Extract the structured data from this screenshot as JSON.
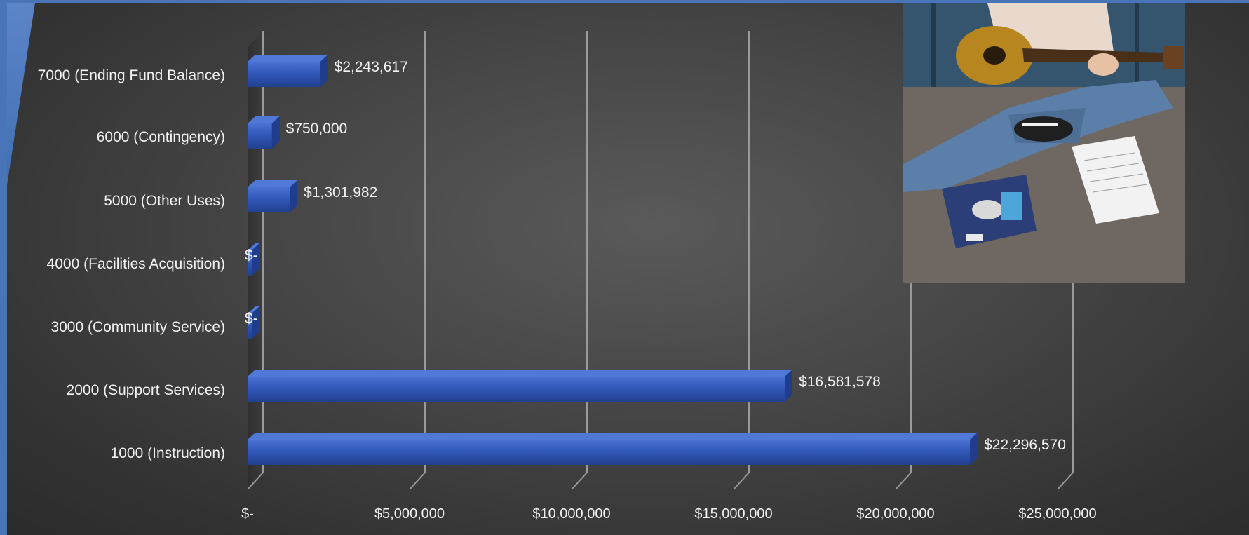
{
  "chart_data": {
    "type": "bar",
    "orientation": "horizontal",
    "style": "3d",
    "categories": [
      "1000 (Instruction)",
      "2000 (Support Services)",
      "3000 (Community Service)",
      "4000 (Facilities Acquisition)",
      "5000 (Other Uses)",
      "6000 (Contingency)",
      "7000 (Ending Fund Balance)"
    ],
    "values": [
      22296570,
      16581578,
      0,
      0,
      1301982,
      750000,
      2243617
    ],
    "data_labels": [
      "$22,296,570",
      "$16,581,578",
      "$-",
      "$-",
      "$1,301,982",
      "$750,000",
      "$2,243,617"
    ],
    "x_ticks": [
      0,
      5000000,
      10000000,
      15000000,
      20000000,
      25000000
    ],
    "x_tick_labels": [
      "$-",
      "$5,000,000",
      "$10,000,000",
      "$15,000,000",
      "$20,000,000",
      "$25,000,000"
    ],
    "xlim": [
      0,
      25000000
    ],
    "grid": true,
    "bar_color": "#2f55b5",
    "title": "",
    "xlabel": "",
    "ylabel": ""
  },
  "photo": {
    "subject": "person-playing-guitar-photo"
  }
}
